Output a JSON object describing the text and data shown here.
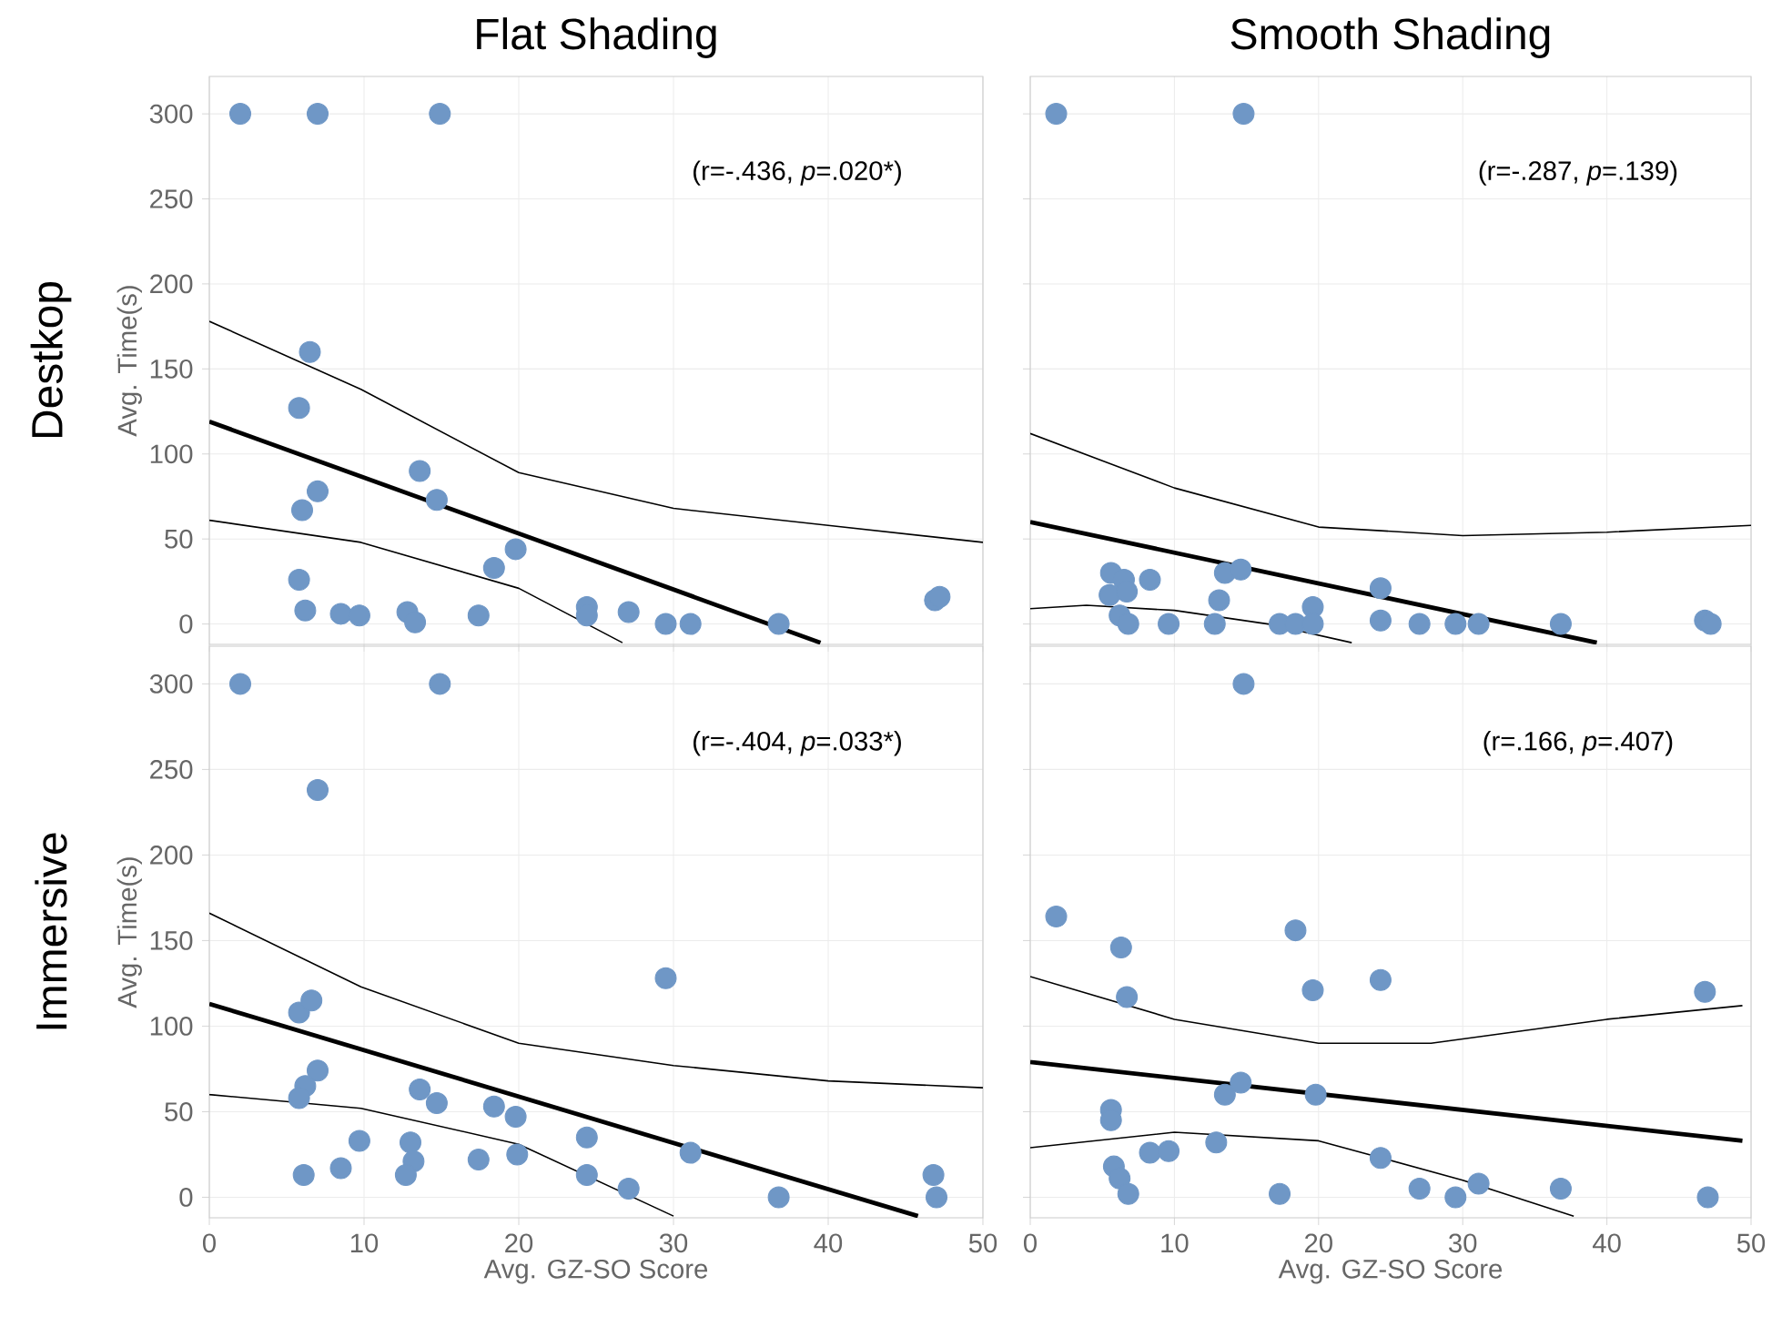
{
  "chart_data": [
    {
      "type": "scatter",
      "title": "Flat Shading",
      "ylabel": "Avg. Time(s)",
      "annotations": [
        "(r=-.436, *p*=.020*)",
        "Destkop"
      ],
      "xlim": [
        0,
        50
      ],
      "ylim": [
        -12,
        322
      ],
      "xticks": [
        0,
        10,
        20,
        30,
        40,
        50
      ],
      "yticks": [
        0,
        50,
        100,
        150,
        200,
        250,
        300
      ],
      "tick_labels": "y",
      "grid": true,
      "marker": "circle",
      "series": [
        {
          "color": "#6f97c6",
          "x": [
            2.0,
            7.0,
            14.9,
            6.5,
            5.8,
            7.0,
            6.0,
            13.6,
            14.7,
            19.8,
            18.4,
            5.8,
            6.2,
            8.5,
            9.7,
            12.8,
            13.3,
            17.4,
            24.4,
            24.4,
            27.1,
            29.5,
            31.1,
            36.8,
            46.9,
            47.2
          ],
          "values": [
            300,
            300,
            300,
            160,
            127,
            78,
            67,
            90,
            73,
            44,
            33,
            26,
            8,
            6,
            5,
            7,
            1,
            5,
            10,
            5,
            7,
            0,
            0,
            0,
            14,
            16
          ]
        },
        {
          "type": "line",
          "marker": "none",
          "color": "#000000",
          "x": [
            0,
            39.5
          ],
          "values": [
            119,
            -11
          ]
        },
        {
          "type": "line",
          "marker": "none",
          "color": "#000000",
          "x": [
            0,
            9.8,
            20,
            30,
            40,
            50
          ],
          "values": [
            178,
            138,
            89,
            68,
            58,
            48
          ]
        },
        {
          "type": "line",
          "marker": "none",
          "color": "#000000",
          "x": [
            0,
            9.8,
            20,
            26.7
          ],
          "values": [
            61,
            48,
            21,
            -11
          ]
        }
      ]
    },
    {
      "type": "scatter",
      "title": "Smooth Shading",
      "annotations": [
        "(r=-.287, *p*=.139)"
      ],
      "xlim": [
        0,
        50
      ],
      "ylim": [
        -12,
        322
      ],
      "xticks": [
        0,
        10,
        20,
        30,
        40,
        50
      ],
      "yticks": [
        0,
        50,
        100,
        150,
        200,
        250,
        300
      ],
      "tick_labels": false,
      "grid": true,
      "marker": "circle",
      "series": [
        {
          "color": "#6f97c6",
          "x": [
            1.8,
            14.8,
            5.6,
            6.5,
            5.5,
            6.7,
            8.3,
            13.5,
            14.6,
            13.1,
            6.2,
            6.8,
            9.6,
            12.8,
            17.3,
            18.4,
            19.6,
            19.6,
            24.3,
            24.3,
            27.0,
            29.5,
            31.1,
            36.8,
            46.8,
            47.2
          ],
          "values": [
            300,
            300,
            30,
            26,
            17,
            19,
            26,
            30,
            32,
            14,
            5,
            0,
            0,
            0,
            0,
            0,
            10,
            0,
            21,
            2,
            0,
            0,
            0,
            0,
            2,
            0
          ]
        },
        {
          "type": "line",
          "marker": "none",
          "color": "#000000",
          "x": [
            0,
            39.3
          ],
          "values": [
            60,
            -11
          ]
        },
        {
          "type": "line",
          "marker": "none",
          "color": "#000000",
          "x": [
            0,
            10,
            20,
            30,
            40,
            50
          ],
          "values": [
            112,
            80,
            57,
            52,
            54,
            58
          ]
        },
        {
          "type": "line",
          "marker": "none",
          "color": "#000000",
          "x": [
            0,
            3.9,
            10,
            16.5,
            22.3
          ],
          "values": [
            9,
            11,
            8,
            0,
            -11
          ]
        }
      ]
    },
    {
      "type": "scatter",
      "xlabel": "Avg. GZ-SO Score",
      "ylabel": "Avg. Time(s)",
      "annotations": [
        "(r=-.404, *p*=.033*)",
        "Immersive"
      ],
      "xlim": [
        0,
        50
      ],
      "ylim": [
        -12,
        322
      ],
      "xticks": [
        0,
        10,
        20,
        30,
        40,
        50
      ],
      "yticks": [
        0,
        50,
        100,
        150,
        200,
        250,
        300
      ],
      "grid": true,
      "marker": "circle",
      "series": [
        {
          "color": "#6f97c6",
          "x": [
            2.0,
            14.9,
            7.0,
            29.5,
            5.8,
            6.6,
            7.0,
            6.2,
            5.8,
            13.6,
            14.7,
            18.4,
            19.8,
            9.7,
            13.0,
            13.2,
            12.7,
            6.1,
            8.5,
            17.4,
            19.9,
            24.4,
            24.4,
            27.1,
            31.1,
            36.8,
            46.8,
            47.0
          ],
          "values": [
            300,
            300,
            238,
            128,
            108,
            115,
            74,
            65,
            58,
            63,
            55,
            53,
            47,
            33,
            32,
            21,
            13,
            13,
            17,
            22,
            25,
            35,
            13,
            5,
            26,
            0,
            13,
            0
          ]
        },
        {
          "type": "line",
          "marker": "none",
          "color": "#000000",
          "x": [
            0,
            45.8
          ],
          "values": [
            113,
            -11
          ]
        },
        {
          "type": "line",
          "marker": "none",
          "color": "#000000",
          "x": [
            0,
            9.8,
            20,
            30,
            40,
            50
          ],
          "values": [
            166,
            123,
            90,
            77,
            68,
            64
          ]
        },
        {
          "type": "line",
          "marker": "none",
          "color": "#000000",
          "x": [
            0,
            9.8,
            20,
            30
          ],
          "values": [
            60,
            52,
            31,
            -11
          ]
        }
      ]
    },
    {
      "type": "scatter",
      "xlabel": "Avg. GZ-SO Score",
      "annotations": [
        "(r=.166, *p*=.407)"
      ],
      "xlim": [
        0,
        50
      ],
      "ylim": [
        -12,
        322
      ],
      "xticks": [
        0,
        10,
        20,
        30,
        40,
        50
      ],
      "yticks": [
        0,
        50,
        100,
        150,
        200,
        250,
        300
      ],
      "tick_labels": "x",
      "grid": true,
      "marker": "circle",
      "series": [
        {
          "color": "#6f97c6",
          "x": [
            14.8,
            1.8,
            6.3,
            18.4,
            6.7,
            19.6,
            24.3,
            46.8,
            5.6,
            5.6,
            13.5,
            14.6,
            19.8,
            8.3,
            9.6,
            12.9,
            5.8,
            6.2,
            6.8,
            17.3,
            24.3,
            27.0,
            29.5,
            31.1,
            36.8,
            47.0
          ],
          "values": [
            300,
            164,
            146,
            156,
            117,
            121,
            127,
            120,
            51,
            45,
            60,
            67,
            60,
            26,
            27,
            32,
            18,
            11,
            2,
            2,
            23,
            5,
            0,
            8,
            5,
            0
          ]
        },
        {
          "type": "line",
          "marker": "none",
          "color": "#000000",
          "x": [
            0,
            49.4
          ],
          "values": [
            79,
            33
          ]
        },
        {
          "type": "line",
          "marker": "none",
          "color": "#000000",
          "x": [
            0,
            10,
            20,
            27.8,
            40,
            49.4
          ],
          "values": [
            129,
            104,
            90,
            90,
            104,
            112
          ]
        },
        {
          "type": "line",
          "marker": "none",
          "color": "#000000",
          "x": [
            0,
            10,
            20,
            30,
            37.7
          ],
          "values": [
            29,
            38,
            33,
            10,
            -11
          ]
        }
      ]
    }
  ]
}
